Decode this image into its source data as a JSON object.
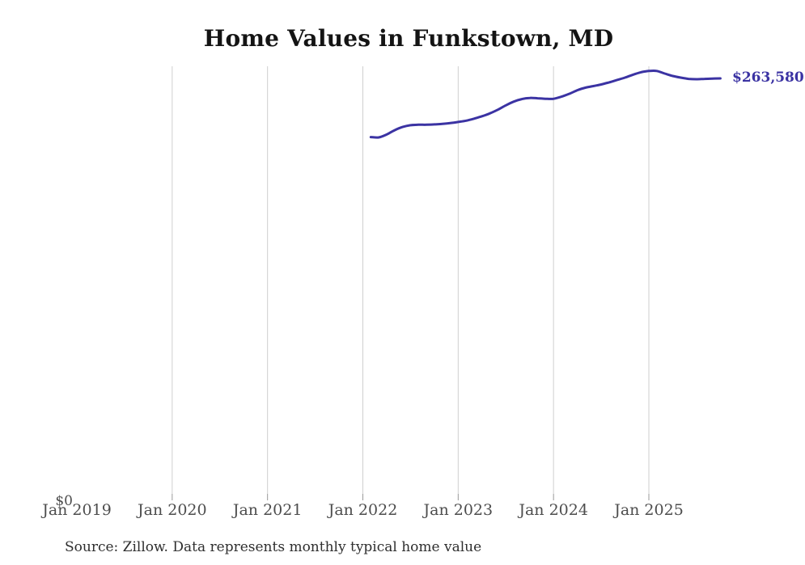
{
  "page": {
    "title": "Home Values in Funkstown, MD",
    "source_note": "Source: Zillow. Data represents monthly typical home value"
  },
  "chart_data": {
    "type": "line",
    "title": "Home Values in Funkstown, MD",
    "series_name": "Monthly typical home value",
    "x": [
      "Feb 2022",
      "Mar 2022",
      "Apr 2022",
      "May 2022",
      "Jun 2022",
      "Jul 2022",
      "Aug 2022",
      "Sep 2022",
      "Oct 2022",
      "Nov 2022",
      "Dec 2022",
      "Jan 2023",
      "Feb 2023",
      "Mar 2023",
      "Apr 2023",
      "May 2023",
      "Jun 2023",
      "Jul 2023",
      "Aug 2023",
      "Sep 2023",
      "Oct 2023",
      "Nov 2023",
      "Dec 2023",
      "Jan 2024",
      "Feb 2024",
      "Mar 2024",
      "Apr 2024",
      "May 2024",
      "Jun 2024",
      "Jul 2024",
      "Aug 2024",
      "Sep 2024",
      "Oct 2024",
      "Nov 2024",
      "Dec 2024",
      "Jan 2025",
      "Feb 2025",
      "Mar 2025",
      "Apr 2025",
      "May 2025",
      "Jun 2025",
      "Jul 2025",
      "Aug 2025",
      "Sep 2025",
      "Oct 2025"
    ],
    "values": [
      227000,
      226800,
      228600,
      231300,
      233300,
      234400,
      234700,
      234700,
      234900,
      235200,
      235700,
      236400,
      237200,
      238500,
      240000,
      241800,
      244100,
      246800,
      249100,
      250700,
      251400,
      251200,
      250900,
      250900,
      252200,
      254000,
      256200,
      257800,
      258800,
      259800,
      261100,
      262600,
      264100,
      265900,
      267400,
      268200,
      268200,
      266600,
      265100,
      264100,
      263300,
      263100,
      263300,
      263500,
      263580
    ],
    "end_label": "$263,580",
    "final_value": 263580,
    "x_ticks": [
      "Jan 2019",
      "Jan 2020",
      "Jan 2021",
      "Jan 2022",
      "Jan 2023",
      "Jan 2024",
      "Jan 2025"
    ],
    "y_zero_label": "$0",
    "ylim": [
      0,
      280000
    ],
    "grid": "vertical",
    "legend": "none",
    "colors": {
      "line": "#3b33a3",
      "gridline": "#cfcfcf",
      "tick": "#999999",
      "axis_text": "#4d4d4d",
      "title_text": "#141414"
    },
    "source": "Source: Zillow. Data represents monthly typical home value"
  }
}
